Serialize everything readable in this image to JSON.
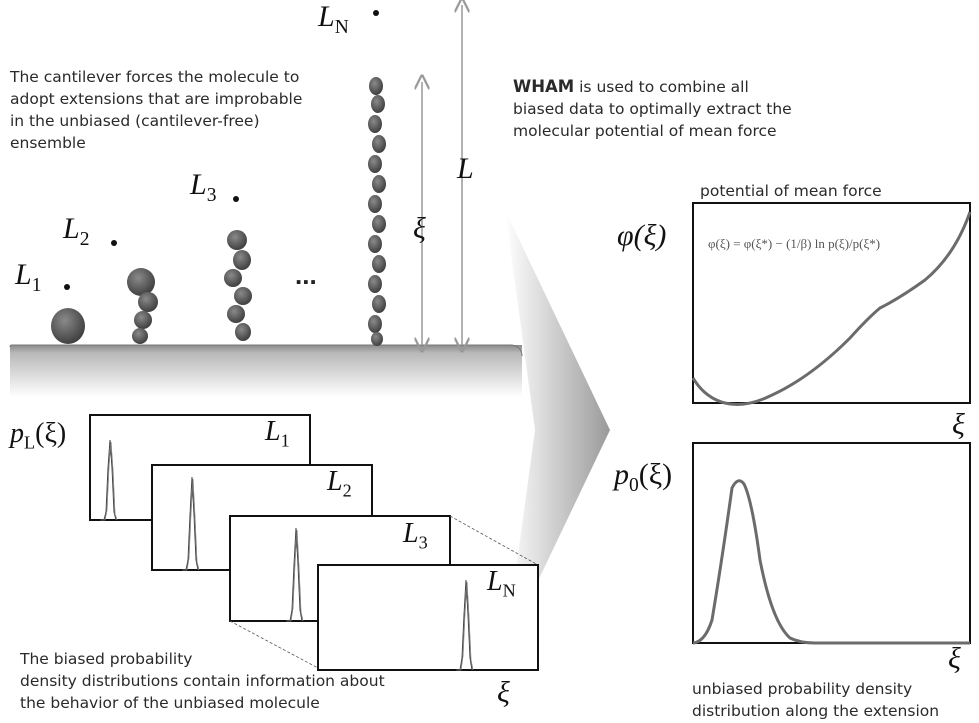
{
  "top_left_caption": [
    "The cantilever forces the molecule to",
    "adopt extensions that are improbable",
    "in the unbiased (cantilever-free)",
    "ensemble"
  ],
  "wham_caption": {
    "bold": "WHAM",
    "line1_rest": " is used to combine all",
    "line2": "biased data to optimally extract the",
    "line3": "molecular potential of mean force"
  },
  "labels": {
    "L1": "1",
    "L2": "2",
    "L3": "3",
    "LN": "N",
    "L_main": "L",
    "L_letter": "L",
    "xi": "ξ",
    "dots": "...",
    "pL": "p",
    "pL_sub": "L",
    "pL_arg": "(ξ)"
  },
  "pmf_panel": {
    "title": "potential of mean force",
    "ylabel": "φ(ξ)",
    "equation": "φ(ξ) = φ(ξ*) − (1/β) ln p(ξ)/p(ξ*)",
    "xlabel": "ξ"
  },
  "p0_panel": {
    "ylabel_main": "p",
    "ylabel_sub": "0",
    "ylabel_arg": "(ξ)",
    "xlabel": "ξ"
  },
  "bottom_left_caption": [
    "The biased probability",
    "density distributions contain information about",
    "the behavior of the unbiased molecule"
  ],
  "bottom_right_caption": [
    "unbiased probability density",
    "distribution along the extension"
  ],
  "colors": {
    "curve": "#6b6b6b",
    "molecule": "#555555",
    "arrow": "#999999"
  }
}
